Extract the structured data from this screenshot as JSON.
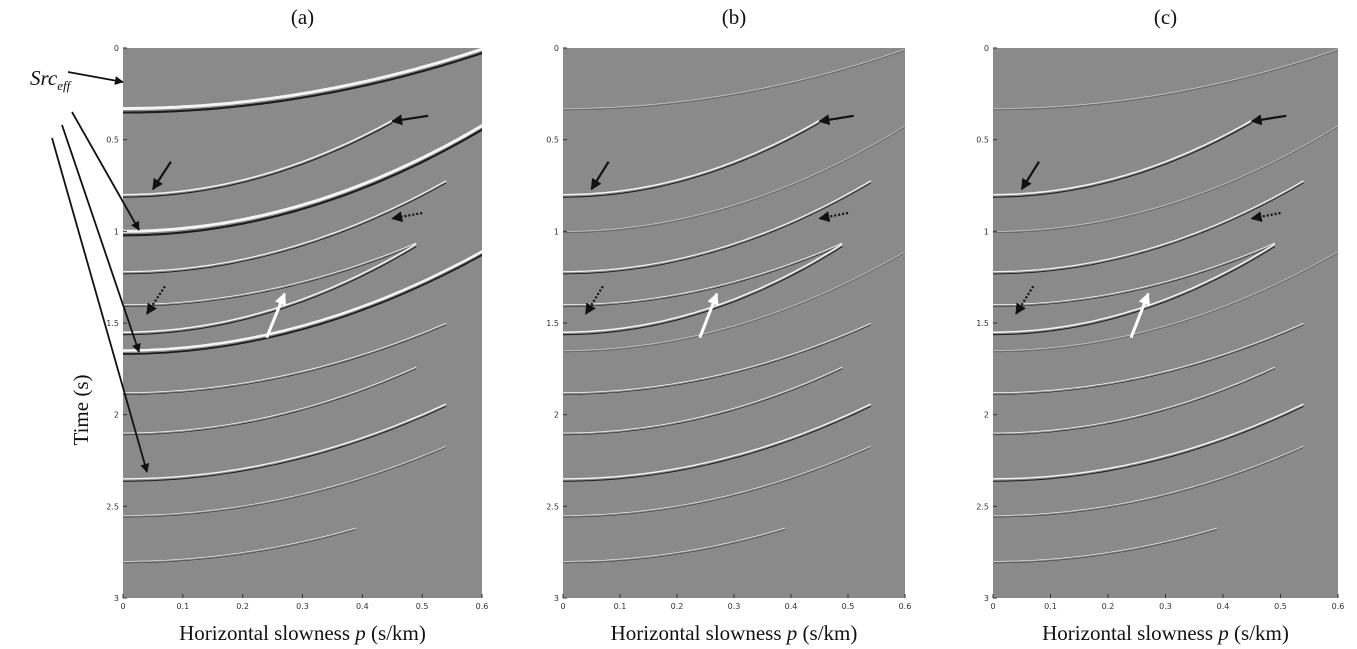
{
  "panels": [
    {
      "label": "(a)"
    },
    {
      "label": "(b)"
    },
    {
      "label": "(c)"
    }
  ],
  "x_label": {
    "text": "Horizontal slowness",
    "symbol": "p",
    "unit": "(s/km)"
  },
  "y_label": "Time (s)",
  "annotation": {
    "base": "Src",
    "subscript": "eff"
  },
  "xlim": [
    0,
    0.6
  ],
  "xticks": [
    0,
    0.1,
    0.2,
    0.3,
    0.4,
    0.5,
    0.6
  ],
  "ylim": [
    0,
    3
  ],
  "yticks": [
    0,
    0.5,
    1,
    1.5,
    2,
    2.5,
    3
  ]
}
